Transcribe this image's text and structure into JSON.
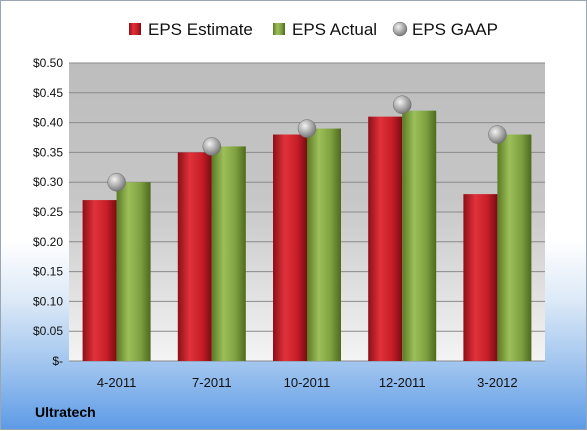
{
  "company": "Ultratech",
  "colors": {
    "estimate": "#c8202a",
    "actual": "#7fa040",
    "gaap": "#a8a8a8"
  },
  "chart_data": {
    "type": "bar",
    "categories": [
      "4-2011",
      "7-2011",
      "10-2011",
      "12-2011",
      "3-2012"
    ],
    "series": [
      {
        "name": "EPS Estimate",
        "kind": "bar",
        "values": [
          0.27,
          0.35,
          0.38,
          0.41,
          0.28
        ]
      },
      {
        "name": "EPS Actual",
        "kind": "bar",
        "values": [
          0.3,
          0.36,
          0.39,
          0.42,
          0.38
        ]
      },
      {
        "name": "EPS GAAP",
        "kind": "marker",
        "values": [
          0.3,
          0.36,
          0.39,
          0.43,
          0.38
        ]
      }
    ],
    "yticks": [
      "$-",
      "$0.05",
      "$0.10",
      "$0.15",
      "$0.20",
      "$0.25",
      "$0.30",
      "$0.35",
      "$0.40",
      "$0.45",
      "$0.50"
    ],
    "ylim": [
      0,
      0.5
    ],
    "grid": true,
    "legend_position": "top"
  }
}
